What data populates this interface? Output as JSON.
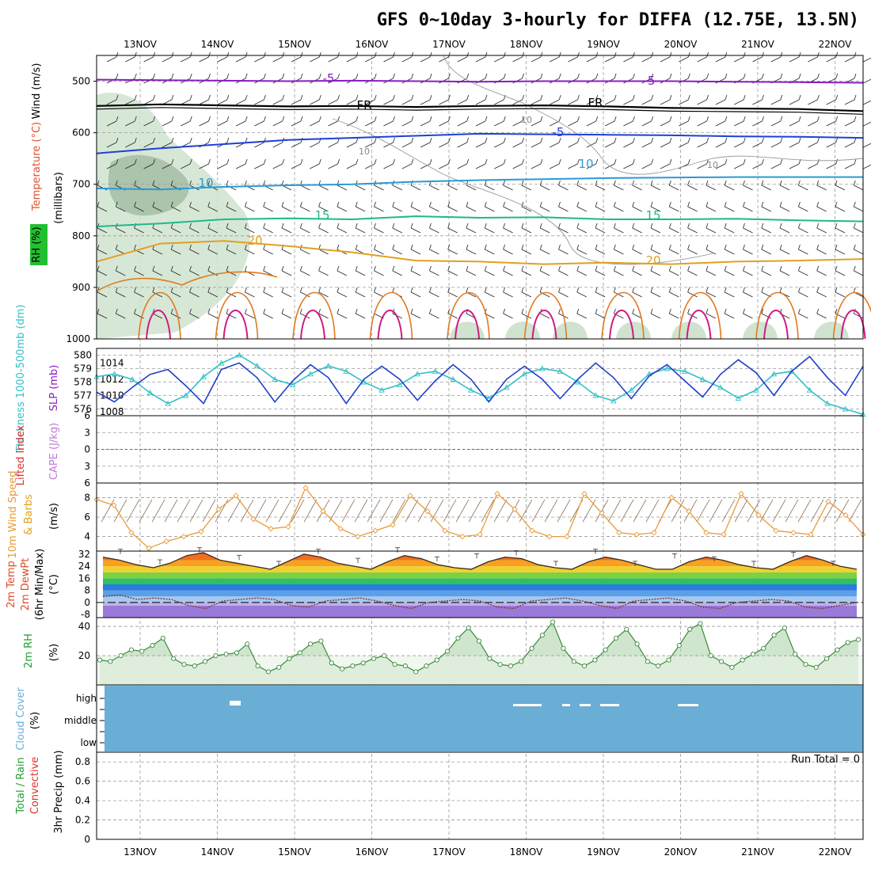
{
  "title": "GFS 0~10day 3-hourly for DIFFA (12.75E, 13.5N)",
  "date_labels": [
    "13NOV",
    "14NOV",
    "15NOV",
    "16NOV",
    "17NOV",
    "18NOV",
    "19NOV",
    "20NOV",
    "21NOV",
    "22NOV"
  ],
  "panel_labels": {
    "upper": [
      "Wind (m/s)",
      "Temperature (°C)",
      "RH (%)",
      "(millibars)"
    ],
    "sfc": [
      "Thickness 1000-500mb (dm)",
      "SLP (mb)"
    ],
    "cape": [
      "Lifted Index",
      "CAPE (J/kg)"
    ],
    "wind10": [
      "10m Wind Speed",
      "& Barbs",
      "(m/s)"
    ],
    "temp2m": [
      "2m Temp",
      "2m DewPt",
      "(6hr Min/Max)",
      "(°C)"
    ],
    "rh2m": [
      "2m RH",
      "(%)"
    ],
    "cloud": [
      "Cloud Cover",
      "(%)"
    ],
    "precip": [
      "Total / Rain",
      "Convective",
      "3hr Precip (mm)"
    ]
  },
  "run_total": "Run Total = 0",
  "colors": {
    "rh_fill": "#cfe3cf",
    "rh_dark": "#a7bfa7",
    "purple": "#8a1cc4",
    "black": "#000000",
    "blue": "#1f3fd6",
    "cyan": "#2a9ad6",
    "green": "#1fb88a",
    "orange": "#e0a020",
    "dorange": "#e07a20",
    "magenta": "#d01a80",
    "slp": "#1f3fc8",
    "thick": "#33c0c8",
    "wind": "#e89a3a",
    "cloud": "#6aaed6",
    "rh2m_fill": "#a9cfa6",
    "rh2m_line": "#3a8a3a"
  },
  "chart_data": [
    {
      "type": "line",
      "name": "upper-air",
      "ylabel": "millibars",
      "ylim": [
        1000,
        450
      ],
      "y_ticks": [
        500,
        600,
        700,
        800,
        900,
        1000
      ],
      "contour_labels": [
        "-5",
        "-5",
        "FR",
        "FR",
        "-5",
        "10",
        "10",
        "15",
        "15",
        "20",
        "20",
        "10",
        "10",
        "10"
      ],
      "isotherms": [
        {
          "label": "-5",
          "values": [
            497,
            498,
            499,
            500,
            499,
            500,
            501,
            500,
            500,
            500,
            501,
            502,
            503
          ]
        },
        {
          "label": "FR",
          "values": [
            548,
            545,
            547,
            549,
            548,
            550,
            548,
            547,
            549,
            552,
            553,
            554,
            558
          ]
        },
        {
          "label": "-5",
          "values": [
            640,
            630,
            622,
            614,
            610,
            606,
            602,
            603,
            604,
            605,
            607,
            608,
            610
          ]
        },
        {
          "label": "10",
          "values": [
            708,
            710,
            705,
            702,
            700,
            695,
            692,
            690,
            688,
            687,
            686,
            686,
            686
          ]
        },
        {
          "label": "15",
          "values": [
            782,
            776,
            768,
            766,
            768,
            762,
            765,
            764,
            768,
            768,
            767,
            770,
            772
          ]
        },
        {
          "label": "20",
          "values": [
            850,
            815,
            810,
            820,
            832,
            848,
            850,
            855,
            852,
            855,
            850,
            848,
            845
          ]
        }
      ]
    },
    {
      "type": "line",
      "name": "slp-thickness",
      "y_ticks_left": [
        576,
        577,
        578,
        579,
        580
      ],
      "y_ticks_right": [
        1008,
        1010,
        1012,
        1014
      ],
      "series": [
        {
          "name": "SLP (mb)",
          "values": [
            1010.4,
            1009.2,
            1011.0,
            1012.6,
            1013.2,
            1011.2,
            1009.0,
            1013.2,
            1014.0,
            1012.2,
            1009.2,
            1011.8,
            1013.8,
            1012.2,
            1009.0,
            1012.0,
            1013.6,
            1012.0,
            1009.4,
            1011.8,
            1013.8,
            1012.0,
            1009.2,
            1012.0,
            1013.6,
            1012.0,
            1009.6,
            1012.0,
            1014.0,
            1012.2,
            1009.6,
            1012.4,
            1013.8,
            1011.8,
            1009.8,
            1012.6,
            1014.4,
            1012.8,
            1010.0,
            1013.0,
            1014.8,
            1012.2,
            1010.0,
            1013.6
          ]
        },
        {
          "name": "Thickness (dm)",
          "values": [
            578.4,
            578.6,
            578.2,
            577.2,
            576.4,
            577.0,
            578.4,
            579.4,
            580.0,
            579.2,
            578.2,
            577.8,
            578.6,
            579.2,
            578.8,
            578.0,
            577.4,
            577.8,
            578.6,
            578.8,
            578.2,
            577.4,
            576.8,
            577.6,
            578.6,
            579.0,
            578.8,
            578.0,
            577.0,
            576.6,
            577.4,
            578.6,
            579.0,
            578.8,
            578.2,
            577.6,
            576.8,
            577.4,
            578.6,
            578.8,
            577.4,
            576.4,
            576.0,
            575.6
          ]
        }
      ]
    },
    {
      "type": "line",
      "name": "cape-li",
      "y_ticks": [
        -6,
        -3,
        0,
        3,
        6
      ],
      "values": []
    },
    {
      "type": "line",
      "name": "wind10",
      "y_ticks": [
        4,
        6,
        8
      ],
      "series": [
        {
          "name": "10m Wind Speed",
          "values": [
            7.8,
            7.2,
            4.4,
            2.8,
            3.5,
            4.0,
            4.5,
            6.8,
            8.2,
            5.8,
            4.8,
            5.0,
            9.0,
            6.6,
            4.8,
            4.0,
            4.6,
            5.2,
            8.2,
            6.6,
            4.6,
            4.0,
            4.2,
            8.4,
            6.8,
            4.6,
            4.0,
            4.0,
            8.4,
            6.4,
            4.4,
            4.2,
            4.4,
            8.0,
            6.6,
            4.4,
            4.2,
            8.4,
            6.2,
            4.6,
            4.4,
            4.2,
            7.6,
            6.2,
            4.2
          ]
        }
      ]
    },
    {
      "type": "line",
      "name": "temp2m",
      "y_ticks": [
        -8,
        0,
        8,
        16,
        24,
        32
      ],
      "series": [
        {
          "name": "2m Temp",
          "values": [
            30,
            28,
            25,
            23,
            26,
            31,
            33,
            28,
            26,
            24,
            22,
            27,
            32,
            30,
            26,
            24,
            22,
            27,
            31,
            29,
            25,
            23,
            22,
            27,
            30,
            29,
            25,
            23,
            22,
            27,
            30,
            28,
            25,
            22,
            22,
            27,
            30,
            28,
            25,
            23,
            22,
            27,
            31,
            28,
            24,
            22
          ]
        },
        {
          "name": "2m DewPt",
          "values": [
            4,
            5,
            2,
            3,
            2,
            -2,
            -4,
            1,
            2,
            3,
            2,
            -2,
            -3,
            1,
            2,
            3,
            1,
            -2,
            -4,
            0,
            1,
            2,
            1,
            -3,
            -4,
            1,
            2,
            3,
            1,
            -2,
            -4,
            1,
            2,
            3,
            1,
            -3,
            -4,
            0,
            1,
            2,
            1,
            -3,
            -4,
            -2,
            0
          ]
        }
      ]
    },
    {
      "type": "area",
      "name": "rh2m",
      "y_ticks": [
        20,
        40
      ],
      "series": [
        {
          "name": "2m RH",
          "values": [
            17,
            16,
            20,
            24,
            23,
            27,
            32,
            18,
            14,
            13,
            16,
            20,
            21,
            22,
            28,
            13,
            9,
            12,
            18,
            22,
            28,
            30,
            15,
            11,
            13,
            15,
            18,
            20,
            14,
            13,
            9,
            13,
            17,
            23,
            32,
            39,
            30,
            18,
            14,
            13,
            16,
            25,
            34,
            43,
            25,
            16,
            13,
            17,
            24,
            32,
            38,
            28,
            16,
            13,
            17,
            27,
            38,
            42,
            20,
            16,
            12,
            17,
            21,
            25,
            34,
            39,
            21,
            14,
            12,
            18,
            24,
            29,
            31
          ]
        }
      ]
    },
    {
      "type": "area",
      "name": "cloud",
      "categories": [
        "high",
        "middle",
        "low"
      ]
    },
    {
      "type": "bar",
      "name": "precip",
      "y_ticks": [
        0,
        0.2,
        0.4,
        0.6,
        0.8
      ],
      "values": []
    }
  ]
}
